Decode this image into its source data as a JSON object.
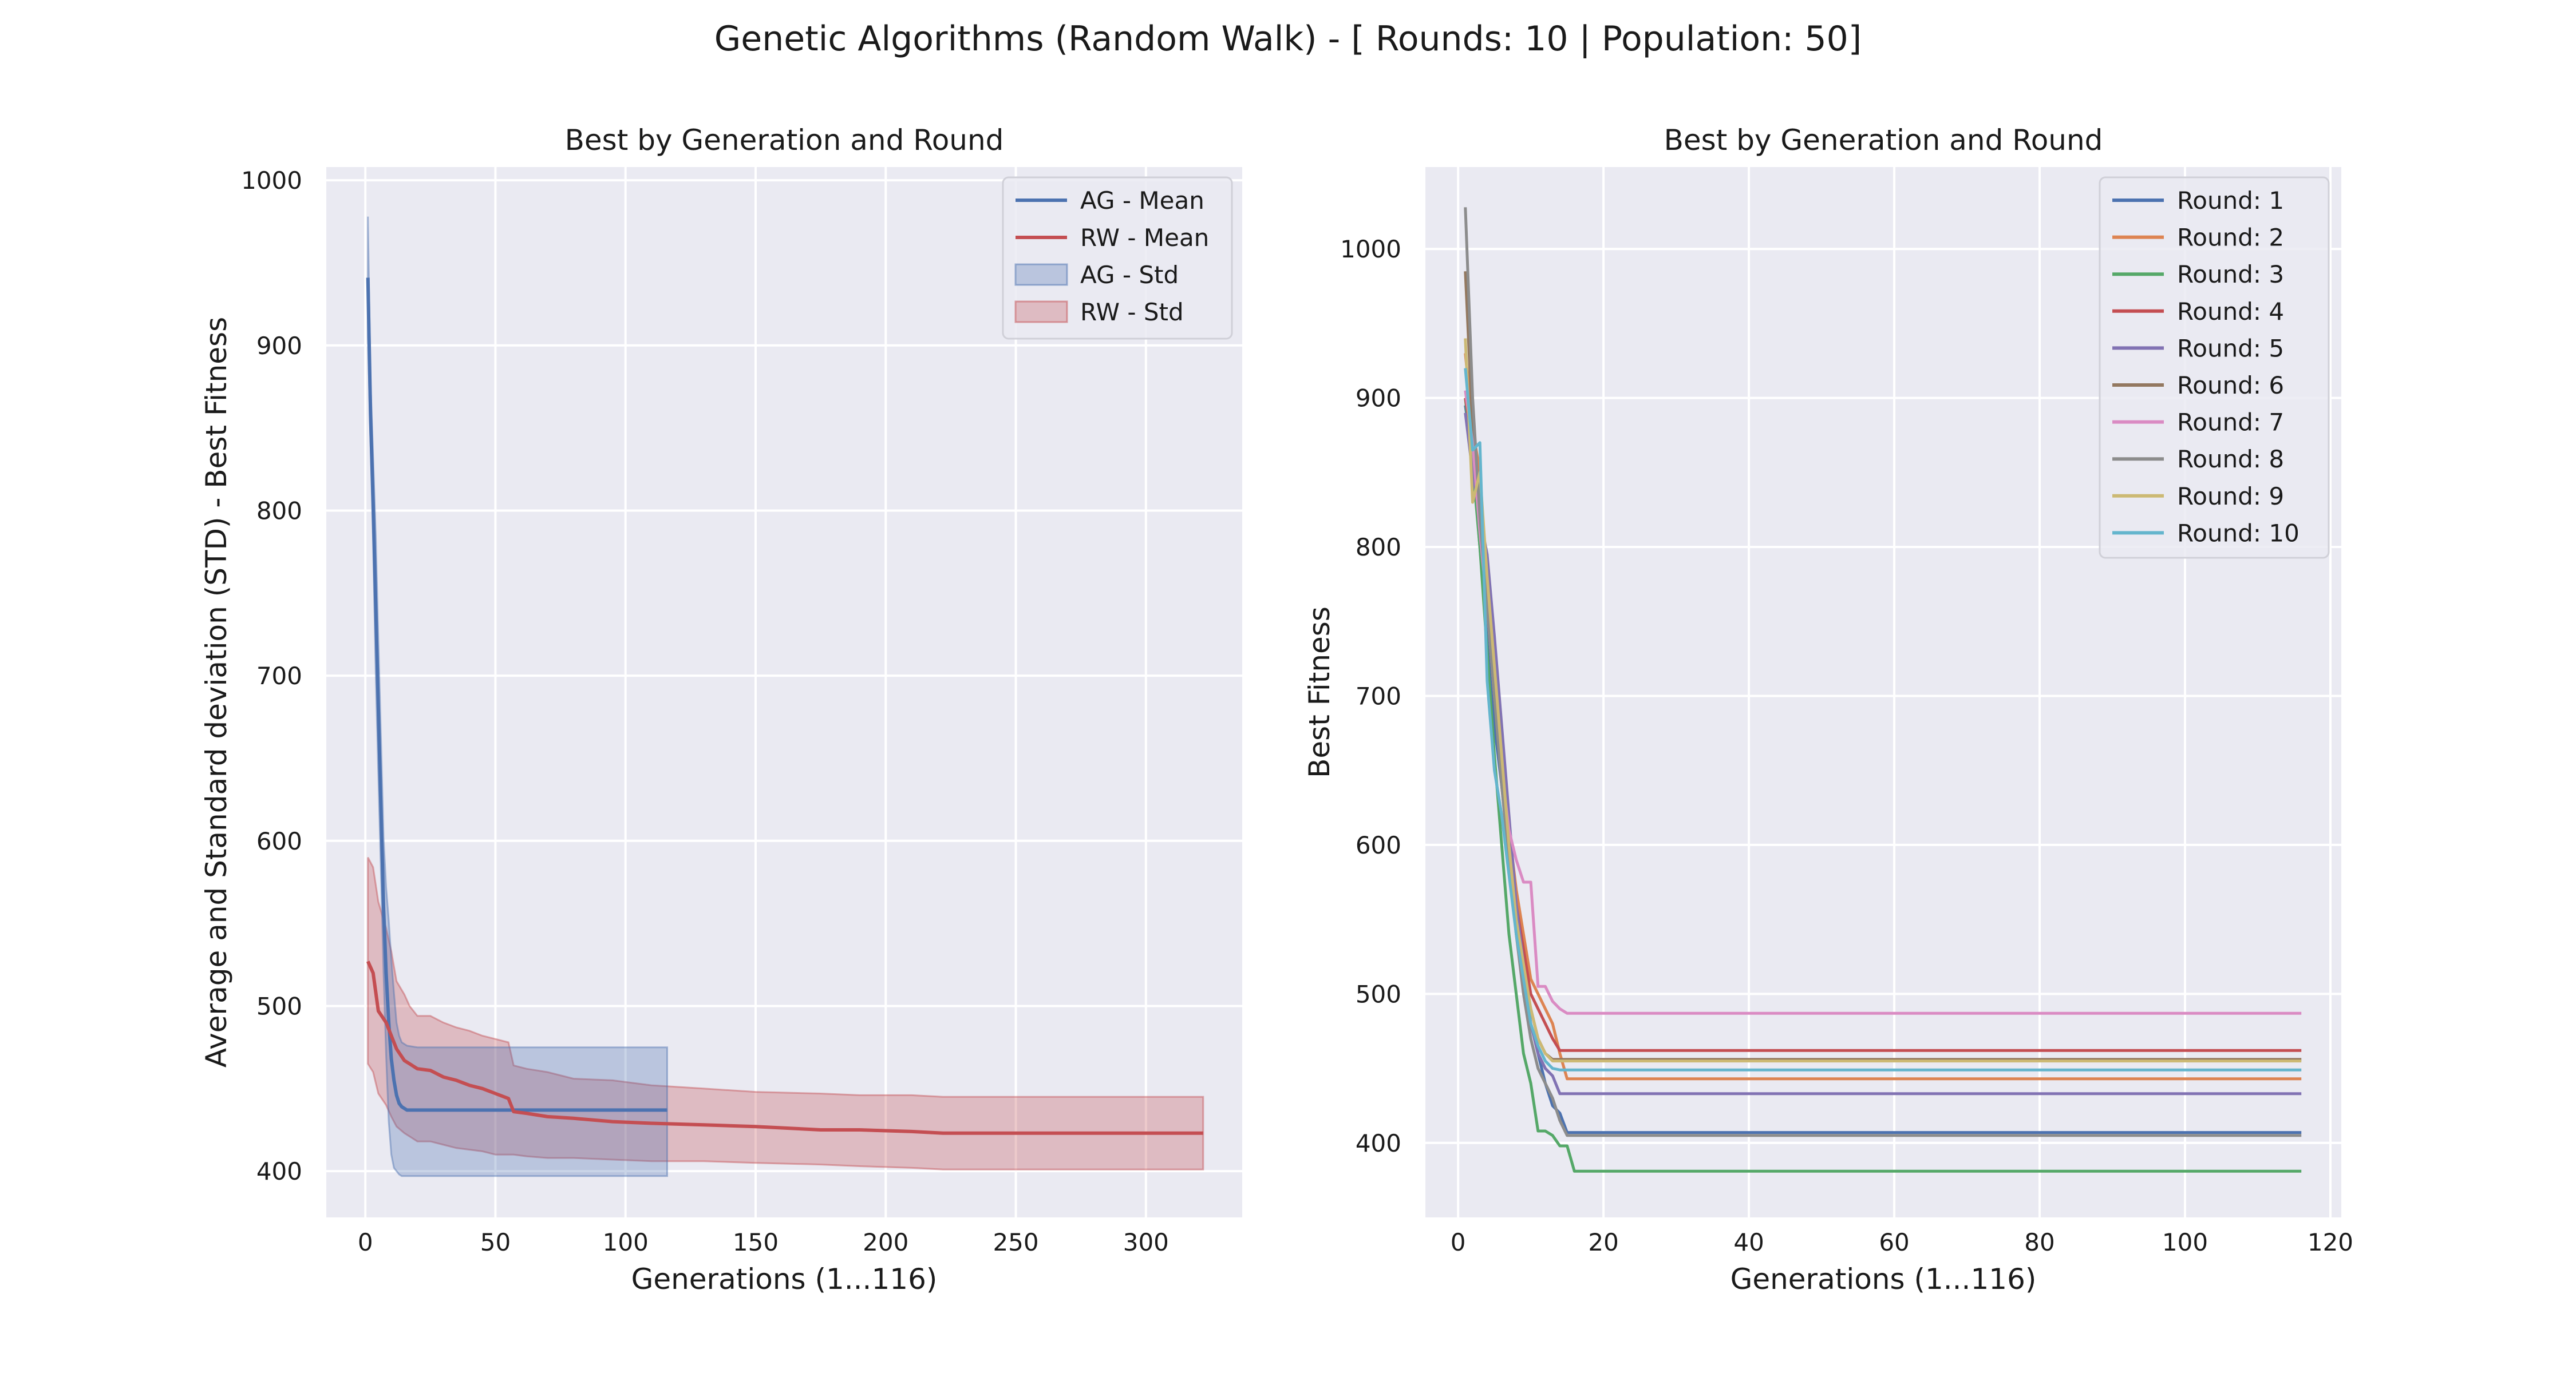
{
  "figure": {
    "suptitle": "Genetic Algorithms (Random Walk) - [ Rounds: 10 | Population: 50]"
  },
  "chart_data": [
    {
      "type": "line",
      "title": "Best by Generation and Round",
      "xlabel": "Generations (1...116)",
      "ylabel": "Average and Standard deviation (STD) - Best Fitness",
      "xlim": [
        -15,
        337
      ],
      "ylim": [
        372,
        1008
      ],
      "xticks": [
        0,
        50,
        100,
        150,
        200,
        250,
        300
      ],
      "yticks": [
        400,
        500,
        600,
        700,
        800,
        900,
        1000
      ],
      "xtick_labels": [
        "0",
        "50",
        "100",
        "150",
        "200",
        "250",
        "300"
      ],
      "ytick_labels": [
        "400",
        "500",
        "600",
        "700",
        "800",
        "900",
        "1000"
      ],
      "grid": true,
      "legend_position": "upper-right",
      "legend": [
        "AG - Mean",
        "RW - Mean",
        "AG - Std",
        "RW - Std"
      ],
      "colors": {
        "ag": "#4c72b0",
        "rw": "#c44e52"
      },
      "series": [
        {
          "name": "AG - Mean",
          "kind": "line",
          "color": "#4c72b0",
          "x": [
            1,
            2,
            3,
            4,
            5,
            6,
            7,
            8,
            9,
            10,
            11,
            12,
            13,
            14,
            16,
            20,
            30,
            50,
            80,
            116
          ],
          "y": [
            941,
            858,
            805,
            742,
            680,
            620,
            560,
            520,
            490,
            468,
            455,
            446,
            441,
            439,
            437,
            437,
            437,
            437,
            437,
            437
          ]
        },
        {
          "name": "AG - Std",
          "kind": "band",
          "color": "#4c72b0",
          "x": [
            1,
            2,
            3,
            4,
            5,
            6,
            7,
            8,
            9,
            10,
            11,
            12,
            13,
            14,
            16,
            20,
            30,
            50,
            80,
            116
          ],
          "lower": [
            905,
            840,
            780,
            700,
            640,
            580,
            520,
            470,
            430,
            410,
            402,
            400,
            398,
            397,
            397,
            397,
            397,
            397,
            397,
            397
          ],
          "upper": [
            978,
            878,
            832,
            785,
            722,
            662,
            602,
            572,
            552,
            528,
            508,
            490,
            482,
            478,
            476,
            475,
            475,
            475,
            475,
            475
          ]
        },
        {
          "name": "RW - Mean",
          "kind": "line",
          "color": "#c44e52",
          "x": [
            1,
            3,
            5,
            8,
            10,
            12,
            15,
            17,
            20,
            25,
            30,
            35,
            40,
            45,
            50,
            55,
            57,
            62,
            70,
            80,
            95,
            110,
            130,
            150,
            175,
            190,
            210,
            222,
            250,
            280,
            322
          ],
          "y": [
            527,
            520,
            497,
            490,
            482,
            474,
            467,
            465,
            462,
            461,
            457,
            455,
            452,
            450,
            447,
            444,
            436,
            435,
            433,
            432,
            430,
            429,
            428,
            427,
            425,
            425,
            424,
            423,
            423,
            423,
            423
          ]
        },
        {
          "name": "RW - Std",
          "kind": "band",
          "color": "#c44e52",
          "x": [
            1,
            3,
            5,
            8,
            10,
            12,
            15,
            17,
            20,
            25,
            30,
            35,
            40,
            45,
            50,
            55,
            57,
            62,
            70,
            80,
            95,
            110,
            130,
            150,
            175,
            190,
            210,
            222,
            250,
            280,
            322
          ],
          "lower": [
            465,
            460,
            447,
            440,
            433,
            427,
            423,
            421,
            418,
            418,
            416,
            414,
            413,
            412,
            410,
            410,
            410,
            409,
            408,
            408,
            407,
            406,
            406,
            405,
            404,
            403,
            402,
            401,
            401,
            401,
            401
          ],
          "upper": [
            590,
            584,
            563,
            547,
            533,
            515,
            507,
            500,
            494,
            494,
            490,
            487,
            485,
            482,
            480,
            478,
            464,
            462,
            460,
            456,
            455,
            452,
            450,
            448,
            447,
            446,
            446,
            445,
            445,
            445,
            445
          ]
        }
      ]
    },
    {
      "type": "line",
      "title": "Best by Generation and Round",
      "xlabel": "Generations (1...116)",
      "ylabel": "Best Fitness",
      "xlim": [
        -4.5,
        121.5
      ],
      "ylim": [
        350,
        1055
      ],
      "xticks": [
        0,
        20,
        40,
        60,
        80,
        100,
        120
      ],
      "yticks": [
        400,
        500,
        600,
        700,
        800,
        900,
        1000
      ],
      "xtick_labels": [
        "0",
        "20",
        "40",
        "60",
        "80",
        "100",
        "120"
      ],
      "ytick_labels": [
        "400",
        "500",
        "600",
        "700",
        "800",
        "900",
        "1000"
      ],
      "grid": true,
      "legend_position": "upper-right",
      "legend": [
        "Round: 1",
        "Round: 2",
        "Round: 3",
        "Round: 4",
        "Round: 5",
        "Round: 6",
        "Round: 7",
        "Round: 8",
        "Round: 9",
        "Round: 10"
      ],
      "series": [
        {
          "name": "Round: 1",
          "color": "#4c72b0",
          "x": [
            1,
            2,
            3,
            4,
            5,
            6,
            7,
            8,
            9,
            10,
            11,
            12,
            13,
            14,
            15,
            116
          ],
          "y": [
            895,
            860,
            800,
            740,
            680,
            640,
            600,
            550,
            510,
            480,
            460,
            440,
            425,
            420,
            407,
            407
          ]
        },
        {
          "name": "Round: 2",
          "color": "#dd8452",
          "x": [
            1,
            2,
            3,
            4,
            5,
            6,
            7,
            8,
            9,
            10,
            11,
            12,
            13,
            14,
            15,
            116
          ],
          "y": [
            930,
            880,
            850,
            760,
            700,
            650,
            610,
            570,
            540,
            510,
            500,
            490,
            480,
            460,
            443,
            443
          ]
        },
        {
          "name": "Round: 3",
          "color": "#55a868",
          "x": [
            1,
            2,
            3,
            4,
            5,
            6,
            7,
            8,
            9,
            10,
            11,
            12,
            13,
            14,
            15,
            16,
            116
          ],
          "y": [
            900,
            855,
            800,
            730,
            660,
            600,
            540,
            500,
            460,
            440,
            408,
            408,
            405,
            398,
            398,
            381,
            381
          ]
        },
        {
          "name": "Round: 4",
          "color": "#c44e52",
          "x": [
            1,
            2,
            3,
            4,
            5,
            6,
            7,
            8,
            9,
            10,
            11,
            12,
            13,
            14,
            15,
            116
          ],
          "y": [
            900,
            870,
            820,
            770,
            720,
            660,
            600,
            560,
            530,
            500,
            490,
            480,
            470,
            462,
            462,
            462
          ]
        },
        {
          "name": "Round: 5",
          "color": "#8172b3",
          "x": [
            1,
            2,
            3,
            4,
            5,
            6,
            7,
            8,
            9,
            10,
            11,
            12,
            13,
            14,
            15,
            116
          ],
          "y": [
            890,
            850,
            820,
            795,
            740,
            680,
            620,
            560,
            520,
            480,
            460,
            450,
            445,
            433,
            433,
            433
          ]
        },
        {
          "name": "Round: 6",
          "color": "#937860",
          "x": [
            1,
            2,
            3,
            4,
            5,
            6,
            7,
            8,
            9,
            10,
            11,
            12,
            13,
            14,
            116
          ],
          "y": [
            985,
            880,
            830,
            760,
            700,
            640,
            590,
            540,
            510,
            490,
            470,
            460,
            456,
            456,
            456
          ]
        },
        {
          "name": "Round: 7",
          "color": "#da8bc3",
          "x": [
            1,
            2,
            3,
            4,
            5,
            6,
            7,
            8,
            9,
            10,
            11,
            12,
            13,
            14,
            15,
            16,
            116
          ],
          "y": [
            905,
            870,
            810,
            760,
            700,
            650,
            610,
            590,
            575,
            575,
            505,
            505,
            495,
            490,
            487,
            487,
            487
          ]
        },
        {
          "name": "Round: 8",
          "color": "#8c8c8c",
          "x": [
            1,
            2,
            3,
            4,
            5,
            6,
            7,
            8,
            9,
            10,
            11,
            12,
            13,
            14,
            15,
            116
          ],
          "y": [
            1028,
            900,
            820,
            760,
            700,
            640,
            590,
            540,
            500,
            470,
            450,
            440,
            430,
            415,
            405,
            405
          ]
        },
        {
          "name": "Round: 9",
          "color": "#ccb974",
          "x": [
            1,
            2,
            3,
            4,
            5,
            6,
            7,
            8,
            9,
            10,
            11,
            12,
            13,
            14,
            116
          ],
          "y": [
            940,
            830,
            850,
            780,
            720,
            660,
            600,
            550,
            520,
            490,
            470,
            460,
            455,
            455,
            455
          ]
        },
        {
          "name": "Round: 10",
          "color": "#64b5cd",
          "x": [
            1,
            2,
            3,
            4,
            5,
            6,
            7,
            8,
            9,
            10,
            11,
            12,
            13,
            14,
            116
          ],
          "y": [
            920,
            865,
            870,
            710,
            650,
            620,
            580,
            540,
            510,
            480,
            465,
            455,
            450,
            449,
            449
          ]
        }
      ]
    }
  ]
}
